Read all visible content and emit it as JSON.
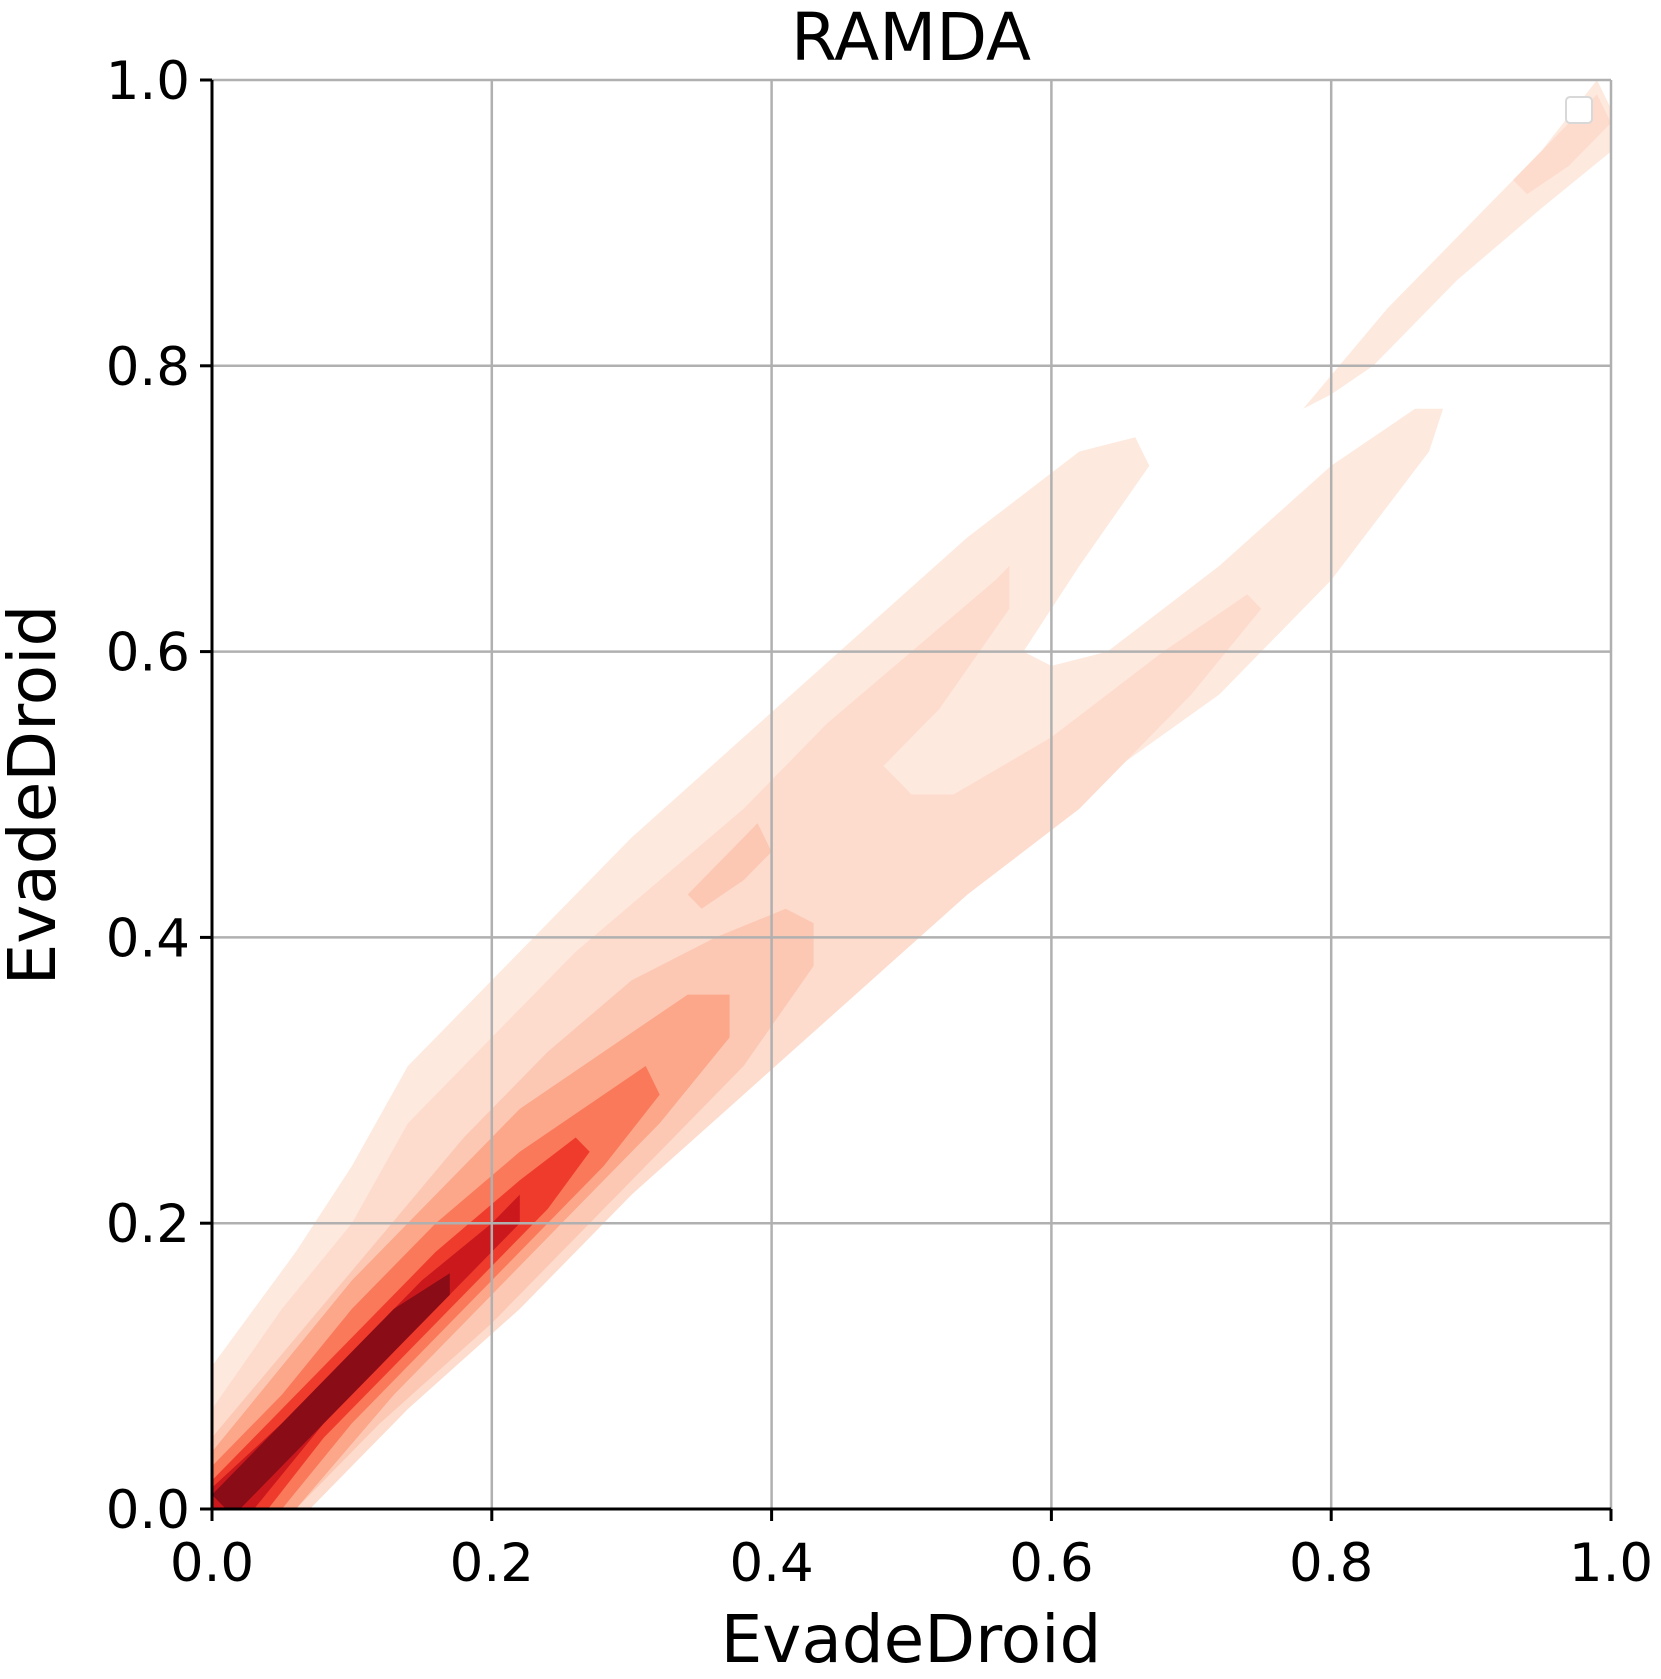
{
  "chart_data": {
    "type": "heatmap",
    "subtype": "kde-contour",
    "title": "RAMDA",
    "xlabel": "EvadeDroid",
    "ylabel": "EvadeDroid",
    "xlim": [
      0.0,
      1.0
    ],
    "ylim": [
      0.0,
      1.0
    ],
    "xticks": [
      "0.0",
      "0.2",
      "0.4",
      "0.6",
      "0.8",
      "1.0"
    ],
    "yticks": [
      "0.0",
      "0.2",
      "0.4",
      "0.6",
      "0.8",
      "1.0"
    ],
    "grid": true,
    "legend": "top-right (empty)",
    "colormap": "Reds",
    "levels": [
      {
        "name": "level-1",
        "color": "#fee9de",
        "polygon": [
          [
            0.0,
            0.0
          ],
          [
            0.0,
            0.1
          ],
          [
            0.06,
            0.18
          ],
          [
            0.1,
            0.24
          ],
          [
            0.14,
            0.31
          ],
          [
            0.2,
            0.37
          ],
          [
            0.25,
            0.42
          ],
          [
            0.3,
            0.47
          ],
          [
            0.38,
            0.54
          ],
          [
            0.46,
            0.61
          ],
          [
            0.54,
            0.68
          ],
          [
            0.62,
            0.74
          ],
          [
            0.66,
            0.75
          ],
          [
            0.67,
            0.73
          ],
          [
            0.62,
            0.66
          ],
          [
            0.58,
            0.6
          ],
          [
            0.6,
            0.59
          ],
          [
            0.64,
            0.6
          ],
          [
            0.72,
            0.66
          ],
          [
            0.8,
            0.73
          ],
          [
            0.86,
            0.77
          ],
          [
            0.88,
            0.77
          ],
          [
            0.87,
            0.74
          ],
          [
            0.8,
            0.65
          ],
          [
            0.72,
            0.57
          ],
          [
            0.62,
            0.5
          ],
          [
            0.52,
            0.42
          ],
          [
            0.42,
            0.34
          ],
          [
            0.32,
            0.26
          ],
          [
            0.22,
            0.16
          ],
          [
            0.14,
            0.08
          ],
          [
            0.06,
            0.0
          ]
        ]
      },
      {
        "name": "level-1-upper",
        "color": "#fee9de",
        "polygon": [
          [
            0.78,
            0.77
          ],
          [
            0.84,
            0.84
          ],
          [
            0.9,
            0.9
          ],
          [
            0.95,
            0.95
          ],
          [
            0.99,
            1.0
          ],
          [
            1.0,
            0.98
          ],
          [
            1.0,
            0.95
          ],
          [
            0.95,
            0.91
          ],
          [
            0.89,
            0.86
          ],
          [
            0.83,
            0.8
          ],
          [
            0.8,
            0.78
          ]
        ]
      },
      {
        "name": "level-2",
        "color": "#fddccd",
        "polygon": [
          [
            0.0,
            0.0
          ],
          [
            0.0,
            0.07
          ],
          [
            0.05,
            0.14
          ],
          [
            0.1,
            0.2
          ],
          [
            0.14,
            0.27
          ],
          [
            0.2,
            0.33
          ],
          [
            0.26,
            0.39
          ],
          [
            0.32,
            0.44
          ],
          [
            0.38,
            0.49
          ],
          [
            0.44,
            0.55
          ],
          [
            0.5,
            0.6
          ],
          [
            0.56,
            0.65
          ],
          [
            0.57,
            0.66
          ],
          [
            0.57,
            0.63
          ],
          [
            0.52,
            0.56
          ],
          [
            0.48,
            0.52
          ],
          [
            0.5,
            0.5
          ],
          [
            0.53,
            0.5
          ],
          [
            0.6,
            0.54
          ],
          [
            0.68,
            0.6
          ],
          [
            0.74,
            0.64
          ],
          [
            0.75,
            0.63
          ],
          [
            0.7,
            0.57
          ],
          [
            0.62,
            0.49
          ],
          [
            0.54,
            0.43
          ],
          [
            0.46,
            0.36
          ],
          [
            0.38,
            0.29
          ],
          [
            0.3,
            0.22
          ],
          [
            0.22,
            0.14
          ],
          [
            0.14,
            0.07
          ],
          [
            0.07,
            0.0
          ]
        ]
      },
      {
        "name": "level-3",
        "color": "#fcc8b3",
        "polygon": [
          [
            0.0,
            0.0
          ],
          [
            0.0,
            0.05
          ],
          [
            0.06,
            0.12
          ],
          [
            0.12,
            0.19
          ],
          [
            0.18,
            0.26
          ],
          [
            0.24,
            0.32
          ],
          [
            0.3,
            0.37
          ],
          [
            0.36,
            0.4
          ],
          [
            0.41,
            0.42
          ],
          [
            0.43,
            0.41
          ],
          [
            0.43,
            0.38
          ],
          [
            0.38,
            0.31
          ],
          [
            0.32,
            0.25
          ],
          [
            0.26,
            0.19
          ],
          [
            0.2,
            0.13
          ],
          [
            0.12,
            0.06
          ],
          [
            0.06,
            0.0
          ]
        ]
      },
      {
        "name": "level-3-island",
        "color": "#fcc8b3",
        "polygon": [
          [
            0.34,
            0.43
          ],
          [
            0.37,
            0.46
          ],
          [
            0.39,
            0.48
          ],
          [
            0.4,
            0.46
          ],
          [
            0.38,
            0.44
          ],
          [
            0.35,
            0.42
          ]
        ]
      },
      {
        "name": "level-4",
        "color": "#fca68a",
        "polygon": [
          [
            0.0,
            0.0
          ],
          [
            0.0,
            0.04
          ],
          [
            0.05,
            0.1
          ],
          [
            0.1,
            0.16
          ],
          [
            0.16,
            0.22
          ],
          [
            0.22,
            0.28
          ],
          [
            0.28,
            0.32
          ],
          [
            0.34,
            0.36
          ],
          [
            0.37,
            0.36
          ],
          [
            0.37,
            0.33
          ],
          [
            0.32,
            0.27
          ],
          [
            0.26,
            0.21
          ],
          [
            0.2,
            0.15
          ],
          [
            0.13,
            0.08
          ],
          [
            0.06,
            0.0
          ]
        ]
      },
      {
        "name": "level-5",
        "color": "#f9795a",
        "polygon": [
          [
            0.0,
            0.0
          ],
          [
            0.0,
            0.03
          ],
          [
            0.05,
            0.08
          ],
          [
            0.1,
            0.14
          ],
          [
            0.16,
            0.2
          ],
          [
            0.22,
            0.25
          ],
          [
            0.28,
            0.29
          ],
          [
            0.31,
            0.31
          ],
          [
            0.32,
            0.29
          ],
          [
            0.28,
            0.24
          ],
          [
            0.22,
            0.18
          ],
          [
            0.16,
            0.12
          ],
          [
            0.1,
            0.06
          ],
          [
            0.05,
            0.0
          ]
        ]
      },
      {
        "name": "level-6",
        "color": "#ef3b2c",
        "polygon": [
          [
            0.0,
            0.0
          ],
          [
            0.0,
            0.02
          ],
          [
            0.05,
            0.07
          ],
          [
            0.1,
            0.12
          ],
          [
            0.16,
            0.18
          ],
          [
            0.22,
            0.23
          ],
          [
            0.26,
            0.26
          ],
          [
            0.27,
            0.25
          ],
          [
            0.24,
            0.21
          ],
          [
            0.19,
            0.16
          ],
          [
            0.13,
            0.1
          ],
          [
            0.08,
            0.05
          ],
          [
            0.04,
            0.0
          ]
        ]
      },
      {
        "name": "level-7",
        "color": "#cb181d",
        "polygon": [
          [
            0.0,
            0.0
          ],
          [
            0.0,
            0.015
          ],
          [
            0.05,
            0.06
          ],
          [
            0.1,
            0.11
          ],
          [
            0.15,
            0.16
          ],
          [
            0.2,
            0.2
          ],
          [
            0.22,
            0.22
          ],
          [
            0.22,
            0.2
          ],
          [
            0.18,
            0.16
          ],
          [
            0.13,
            0.11
          ],
          [
            0.08,
            0.06
          ],
          [
            0.03,
            0.0
          ]
        ]
      },
      {
        "name": "level-8",
        "color": "#8a0c16",
        "polygon": [
          [
            0.01,
            0.0
          ],
          [
            0.0,
            0.01
          ],
          [
            0.04,
            0.05
          ],
          [
            0.08,
            0.09
          ],
          [
            0.13,
            0.14
          ],
          [
            0.17,
            0.165
          ],
          [
            0.17,
            0.15
          ],
          [
            0.13,
            0.11
          ],
          [
            0.08,
            0.06
          ],
          [
            0.04,
            0.02
          ],
          [
            0.02,
            0.0
          ]
        ]
      },
      {
        "name": "level-upper-peak",
        "color": "#fddccd",
        "polygon": [
          [
            0.93,
            0.93
          ],
          [
            0.96,
            0.96
          ],
          [
            0.99,
            0.99
          ],
          [
            1.0,
            0.97
          ],
          [
            0.97,
            0.94
          ],
          [
            0.94,
            0.92
          ]
        ]
      }
    ]
  }
}
